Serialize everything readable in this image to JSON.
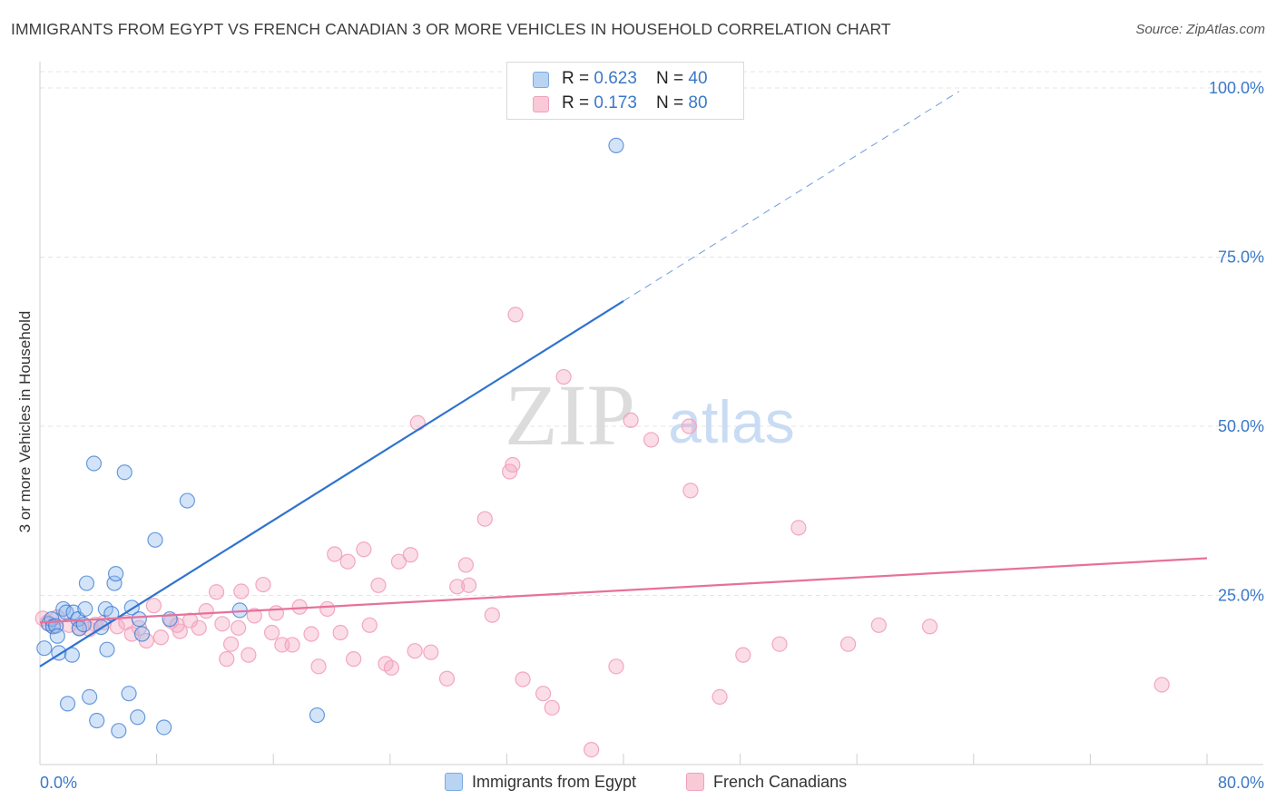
{
  "title": "IMMIGRANTS FROM EGYPT VS FRENCH CANADIAN 3 OR MORE VEHICLES IN HOUSEHOLD CORRELATION CHART",
  "source": "Source: ZipAtlas.com",
  "watermark": {
    "zip": "ZIP",
    "atlas": "atlas"
  },
  "legend_top": {
    "rows": [
      {
        "r_label": "R = ",
        "r_value": "0.623",
        "n_label": "N = ",
        "n_value": "40"
      },
      {
        "r_label": "R = ",
        "r_value": "0.173",
        "n_label": "N = ",
        "n_value": "80"
      }
    ]
  },
  "legend_bottom": {
    "series1": "Immigrants from Egypt",
    "series2": "French Canadians"
  },
  "chart_data": {
    "type": "scatter",
    "title": "IMMIGRANTS FROM EGYPT VS FRENCH CANADIAN 3 OR MORE VEHICLES IN HOUSEHOLD CORRELATION CHART",
    "xlabel": "",
    "ylabel": "3 or more Vehicles in Household",
    "xlim": [
      0,
      80
    ],
    "ylim": [
      0,
      100
    ],
    "x_tick_labels": [
      "0.0%",
      "80.0%"
    ],
    "y_ticks": [
      25,
      50,
      75,
      100
    ],
    "y_tick_labels": [
      "25.0%",
      "50.0%",
      "75.0%",
      "100.0%"
    ],
    "grid": true,
    "colors": {
      "egypt": "#8db8ec",
      "egypt_line": "#2f73cf",
      "french": "#f3a6bf",
      "french_line": "#e7719b",
      "axis_text": "#3b78c7"
    },
    "series": [
      {
        "name": "Immigrants from Egypt",
        "R": 0.623,
        "N": 40,
        "trend": {
          "x0": 0,
          "y0": 14.5,
          "x1": 40,
          "y1": 68.5,
          "dash_x1": 63,
          "dash_y1": 99.5
        },
        "points": [
          [
            0.3,
            17.2
          ],
          [
            0.6,
            20.8
          ],
          [
            0.8,
            21.5
          ],
          [
            0.9,
            20.4
          ],
          [
            1.1,
            20.5
          ],
          [
            1.2,
            19.0
          ],
          [
            1.3,
            16.5
          ],
          [
            1.6,
            23.0
          ],
          [
            1.8,
            22.5
          ],
          [
            1.9,
            9.0
          ],
          [
            2.2,
            16.2
          ],
          [
            2.3,
            22.5
          ],
          [
            2.6,
            21.5
          ],
          [
            2.7,
            20.1
          ],
          [
            3.0,
            20.7
          ],
          [
            3.1,
            23.0
          ],
          [
            3.2,
            26.8
          ],
          [
            3.4,
            10.0
          ],
          [
            3.7,
            44.5
          ],
          [
            3.9,
            6.5
          ],
          [
            4.2,
            20.3
          ],
          [
            4.5,
            23.0
          ],
          [
            4.6,
            17.0
          ],
          [
            4.9,
            22.3
          ],
          [
            5.1,
            26.8
          ],
          [
            5.2,
            28.2
          ],
          [
            5.4,
            5.0
          ],
          [
            5.8,
            43.2
          ],
          [
            6.1,
            10.5
          ],
          [
            6.3,
            23.2
          ],
          [
            6.7,
            7.0
          ],
          [
            6.8,
            21.5
          ],
          [
            7.0,
            19.3
          ],
          [
            7.9,
            33.2
          ],
          [
            8.5,
            5.5
          ],
          [
            8.9,
            21.5
          ],
          [
            10.1,
            39.0
          ],
          [
            13.7,
            22.8
          ],
          [
            19.0,
            7.3
          ],
          [
            39.5,
            91.5
          ]
        ]
      },
      {
        "name": "French Canadians",
        "R": 0.173,
        "N": 80,
        "trend": {
          "x0": 0,
          "y0": 21.0,
          "x1": 80,
          "y1": 30.5
        },
        "points": [
          [
            0.2,
            21.6
          ],
          [
            0.5,
            21.0
          ],
          [
            0.9,
            20.4
          ],
          [
            1.2,
            21.8
          ],
          [
            2.0,
            20.6
          ],
          [
            2.7,
            20.2
          ],
          [
            3.4,
            20.0
          ],
          [
            3.8,
            20.7
          ],
          [
            4.4,
            21.0
          ],
          [
            5.3,
            20.4
          ],
          [
            5.9,
            21.0
          ],
          [
            6.3,
            19.3
          ],
          [
            6.8,
            20.2
          ],
          [
            7.3,
            18.3
          ],
          [
            7.8,
            23.5
          ],
          [
            8.3,
            18.8
          ],
          [
            9.0,
            21.2
          ],
          [
            9.6,
            19.7
          ],
          [
            10.3,
            21.3
          ],
          [
            10.9,
            20.2
          ],
          [
            11.4,
            22.7
          ],
          [
            12.1,
            25.5
          ],
          [
            12.5,
            20.8
          ],
          [
            12.8,
            15.6
          ],
          [
            13.1,
            17.8
          ],
          [
            13.8,
            25.6
          ],
          [
            14.3,
            16.2
          ],
          [
            14.7,
            22.0
          ],
          [
            15.3,
            26.6
          ],
          [
            15.9,
            19.5
          ],
          [
            16.2,
            22.4
          ],
          [
            16.6,
            17.7
          ],
          [
            17.3,
            17.7
          ],
          [
            17.8,
            23.3
          ],
          [
            18.6,
            19.3
          ],
          [
            19.1,
            14.5
          ],
          [
            19.7,
            23.0
          ],
          [
            20.2,
            31.1
          ],
          [
            20.6,
            19.5
          ],
          [
            21.1,
            30.0
          ],
          [
            21.5,
            15.6
          ],
          [
            22.2,
            31.8
          ],
          [
            22.6,
            20.6
          ],
          [
            23.2,
            26.5
          ],
          [
            23.7,
            14.9
          ],
          [
            24.1,
            14.3
          ],
          [
            24.6,
            30.0
          ],
          [
            25.4,
            31.0
          ],
          [
            25.7,
            16.8
          ],
          [
            25.9,
            50.5
          ],
          [
            26.8,
            16.6
          ],
          [
            27.9,
            12.7
          ],
          [
            28.6,
            26.3
          ],
          [
            29.2,
            29.5
          ],
          [
            29.4,
            26.5
          ],
          [
            30.5,
            36.3
          ],
          [
            31.0,
            22.1
          ],
          [
            32.2,
            43.3
          ],
          [
            32.4,
            44.3
          ],
          [
            32.6,
            66.5
          ],
          [
            33.1,
            12.6
          ],
          [
            34.5,
            10.5
          ],
          [
            35.1,
            8.4
          ],
          [
            35.9,
            57.3
          ],
          [
            37.8,
            2.2
          ],
          [
            39.5,
            14.5
          ],
          [
            40.5,
            50.9
          ],
          [
            41.9,
            48.0
          ],
          [
            44.5,
            50.0
          ],
          [
            44.6,
            40.5
          ],
          [
            46.6,
            10.0
          ],
          [
            48.2,
            16.2
          ],
          [
            50.7,
            17.8
          ],
          [
            52.0,
            35.0
          ],
          [
            55.4,
            17.8
          ],
          [
            57.5,
            20.6
          ],
          [
            61.0,
            20.4
          ],
          [
            76.9,
            11.8
          ],
          [
            13.6,
            20.2
          ],
          [
            9.4,
            20.6
          ]
        ]
      }
    ]
  }
}
